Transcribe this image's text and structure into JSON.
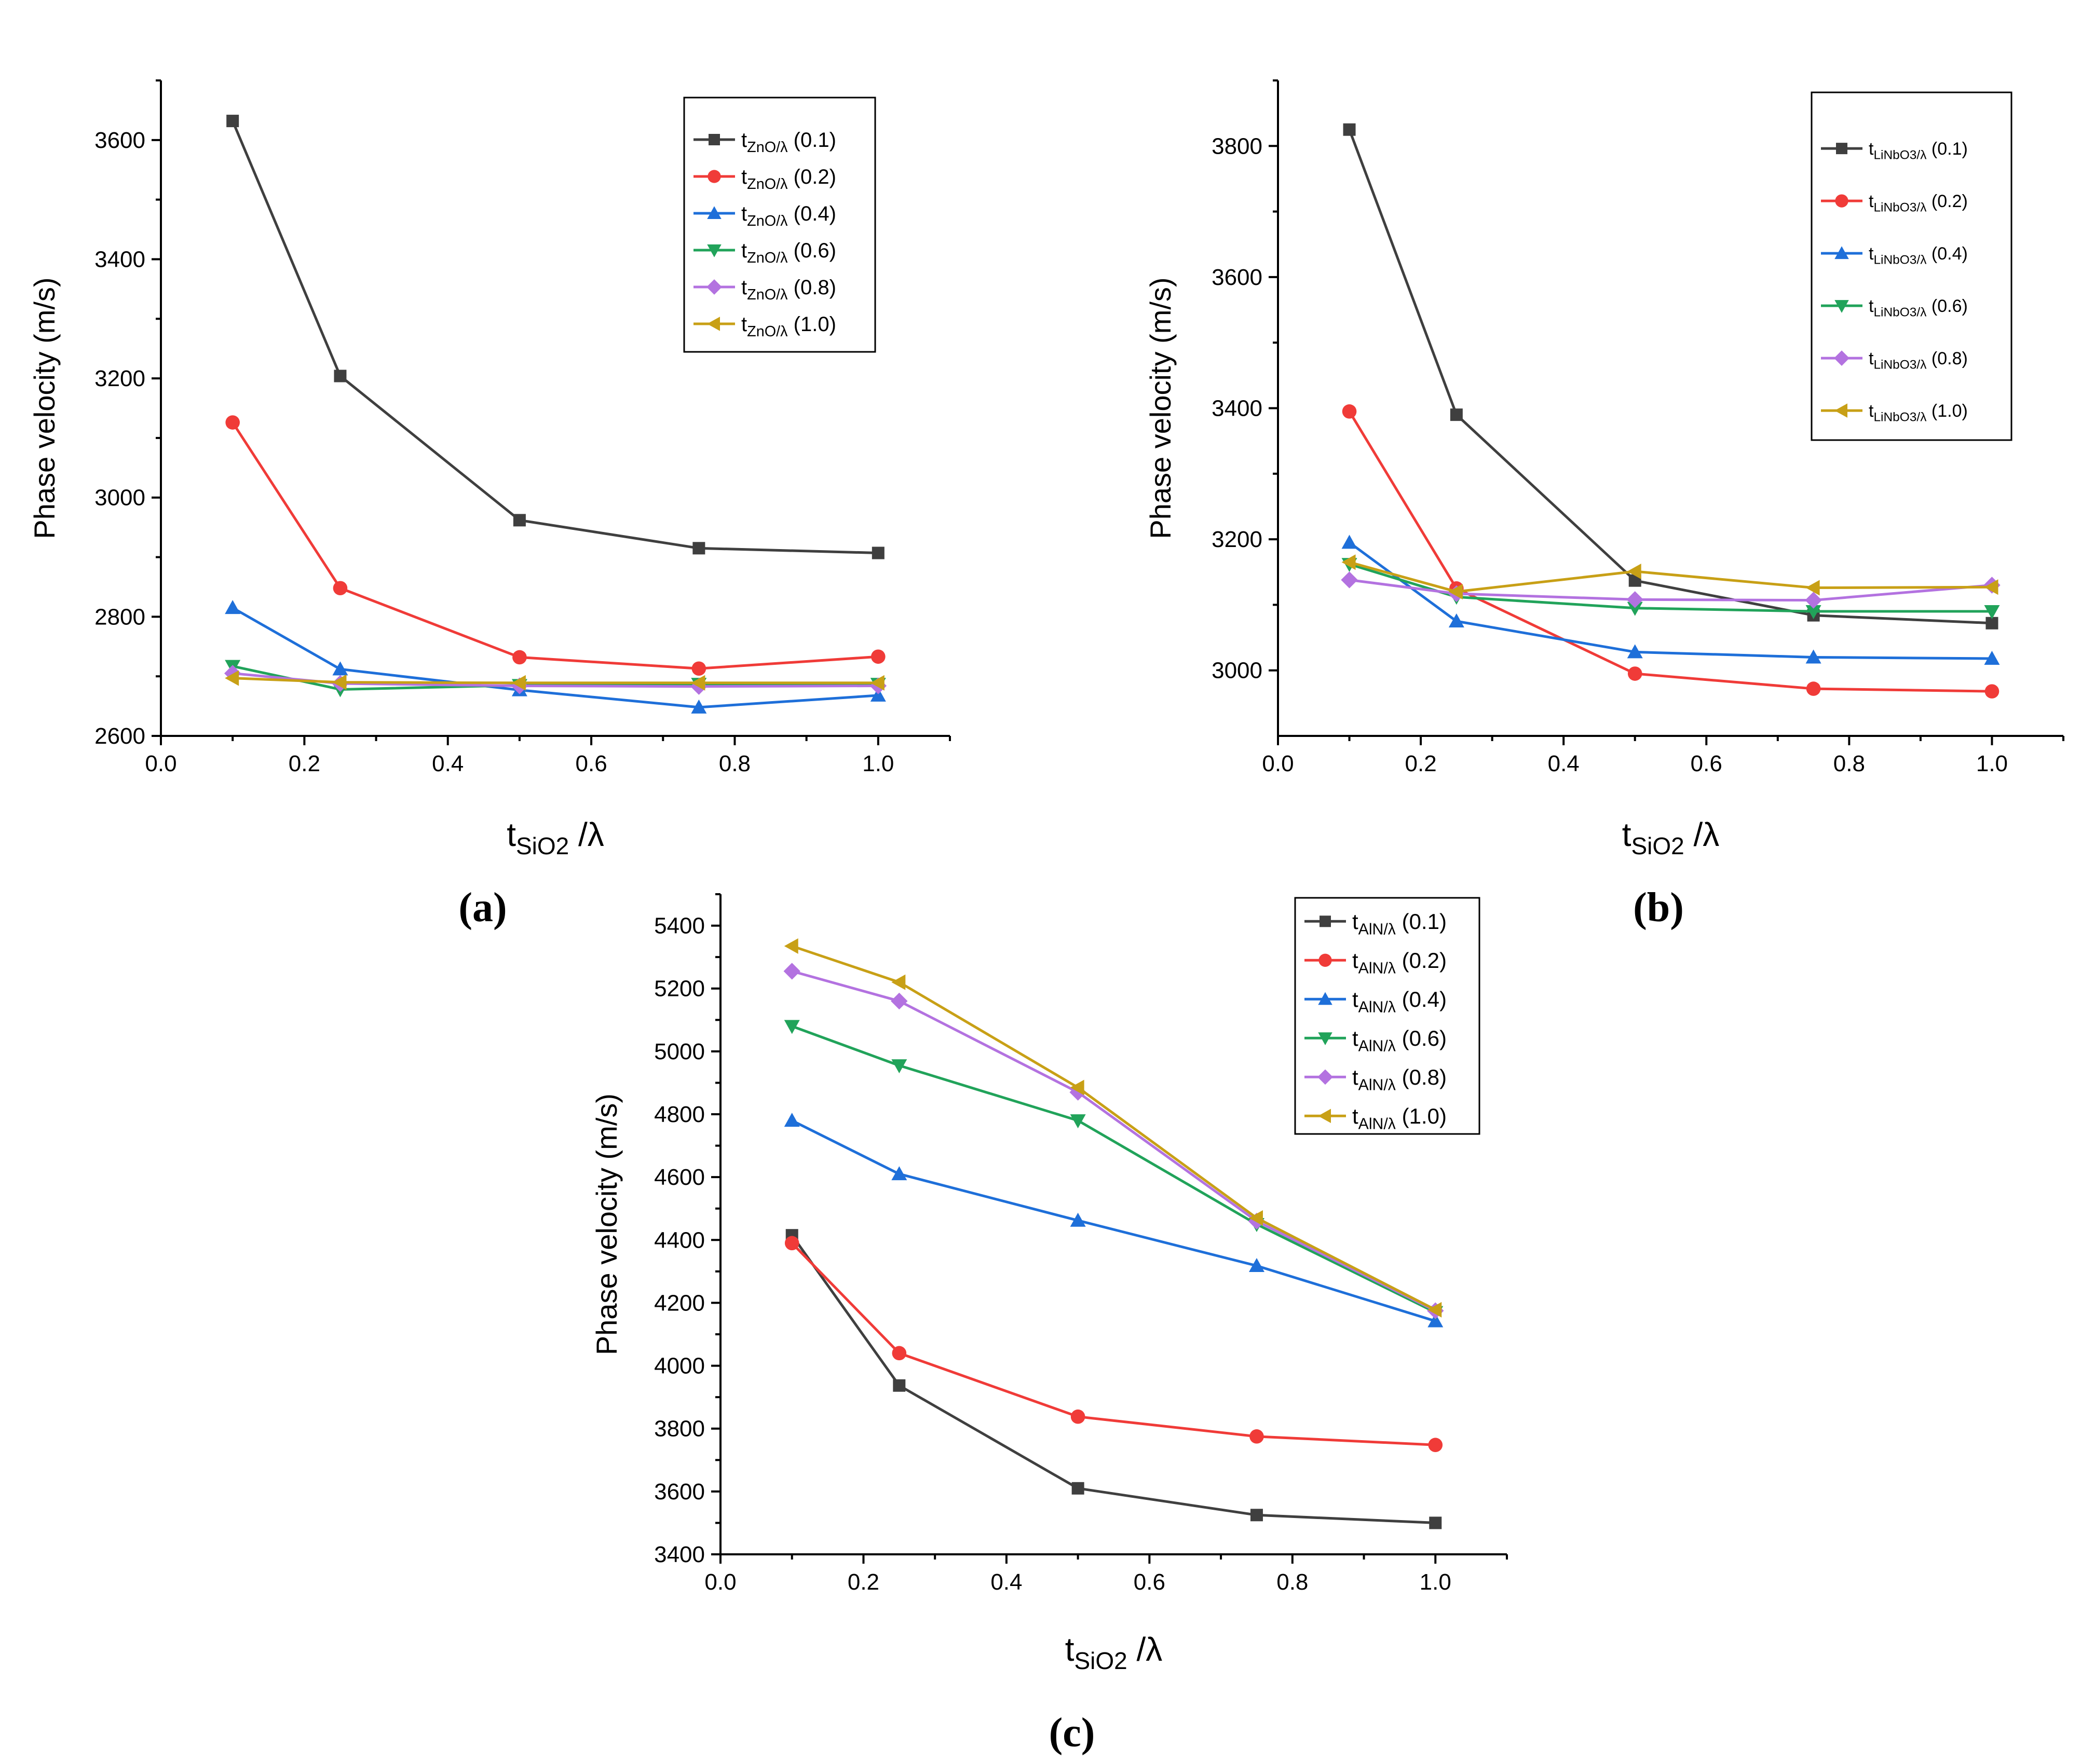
{
  "figure": {
    "panel_labels": [
      "(a)",
      "(b)",
      "(c)"
    ]
  },
  "chart_data": [
    {
      "panel": "(a)",
      "type": "line",
      "ylabel": "Phase velocity (m/s)",
      "xlabel_main": "t",
      "xlabel_sub": "SiO2",
      "xlabel_suffix": " /λ",
      "xlim": [
        0.0,
        1.1
      ],
      "ylim": [
        2600,
        3700
      ],
      "xticks": [
        0.0,
        0.2,
        0.4,
        0.6,
        0.8,
        1.0
      ],
      "xtick_labels": [
        "0.0",
        "0.2",
        "0.4",
        "0.6",
        "0.8",
        "1.0"
      ],
      "yticks": [
        2600,
        2800,
        3000,
        3200,
        3400,
        3600
      ],
      "ytick_labels": [
        "2600",
        "2800",
        "3000",
        "3200",
        "3400",
        "3600"
      ],
      "legend_position": "top-right",
      "x": [
        0.1,
        0.25,
        0.5,
        0.75,
        1.0
      ],
      "series": [
        {
          "name_main": "t",
          "name_sub": "ZnO/λ",
          "name_suffix": " (0.1)",
          "color": "#3f3f3f",
          "marker": "square",
          "values": [
            3632,
            3204,
            2962,
            2915,
            2907
          ]
        },
        {
          "name_main": "t",
          "name_sub": "ZnO/λ",
          "name_suffix": " (0.2)",
          "color": "#f03b38",
          "marker": "circle",
          "values": [
            3126,
            2848,
            2732,
            2713,
            2733
          ]
        },
        {
          "name_main": "t",
          "name_sub": "ZnO/λ",
          "name_suffix": " (0.4)",
          "color": "#1e6fd9",
          "marker": "triangle-up",
          "values": [
            2815,
            2712,
            2677,
            2648,
            2668
          ]
        },
        {
          "name_main": "t",
          "name_sub": "ZnO/λ",
          "name_suffix": " (0.6)",
          "color": "#21a35a",
          "marker": "triangle-down",
          "values": [
            2717,
            2678,
            2685,
            2687,
            2687
          ]
        },
        {
          "name_main": "t",
          "name_sub": "ZnO/λ",
          "name_suffix": " (0.8)",
          "color": "#b372e0",
          "marker": "diamond",
          "values": [
            2705,
            2688,
            2684,
            2683,
            2684
          ]
        },
        {
          "name_main": "t",
          "name_sub": "ZnO/λ",
          "name_suffix": " (1.0)",
          "color": "#c8a016",
          "marker": "triangle-left",
          "values": [
            2697,
            2690,
            2689,
            2689,
            2689
          ]
        }
      ]
    },
    {
      "panel": "(b)",
      "type": "line",
      "ylabel": "Phase velocity (m/s)",
      "xlabel_main": "t",
      "xlabel_sub": "SiO2",
      "xlabel_suffix": " /λ",
      "xlim": [
        0.0,
        1.1
      ],
      "ylim": [
        2900,
        3900
      ],
      "xticks": [
        0.0,
        0.2,
        0.4,
        0.6,
        0.8,
        1.0
      ],
      "xtick_labels": [
        "0.0",
        "0.2",
        "0.4",
        "0.6",
        "0.8",
        "1.0"
      ],
      "yticks": [
        3000,
        3200,
        3400,
        3600,
        3800
      ],
      "ytick_labels": [
        "3000",
        "3200",
        "3400",
        "3600",
        "3800"
      ],
      "legend_position": "top-right",
      "x": [
        0.1,
        0.25,
        0.5,
        0.75,
        1.0
      ],
      "series": [
        {
          "name_main": "t",
          "name_sub": "LiNbO3/λ",
          "name_suffix": " (0.1)",
          "color": "#3f3f3f",
          "marker": "square",
          "values": [
            3825,
            3390,
            3137,
            3084,
            3072
          ]
        },
        {
          "name_main": "t",
          "name_sub": "LiNbO3/λ",
          "name_suffix": " (0.2)",
          "color": "#f03b38",
          "marker": "circle",
          "values": [
            3395,
            3125,
            2995,
            2972,
            2968
          ]
        },
        {
          "name_main": "t",
          "name_sub": "LiNbO3/λ",
          "name_suffix": " (0.4)",
          "color": "#1e6fd9",
          "marker": "triangle-up",
          "values": [
            3195,
            3075,
            3028,
            3020,
            3018
          ]
        },
        {
          "name_main": "t",
          "name_sub": "LiNbO3/λ",
          "name_suffix": " (0.6)",
          "color": "#21a35a",
          "marker": "triangle-down",
          "values": [
            3162,
            3112,
            3095,
            3090,
            3090
          ]
        },
        {
          "name_main": "t",
          "name_sub": "LiNbO3/λ",
          "name_suffix": " (0.8)",
          "color": "#b372e0",
          "marker": "diamond",
          "values": [
            3138,
            3117,
            3108,
            3107,
            3130
          ]
        },
        {
          "name_main": "t",
          "name_sub": "LiNbO3/λ",
          "name_suffix": " (1.0)",
          "color": "#c8a016",
          "marker": "triangle-left",
          "values": [
            3165,
            3120,
            3151,
            3126,
            3127
          ]
        }
      ]
    },
    {
      "panel": "(c)",
      "type": "line",
      "ylabel": "Phase velocity (m/s)",
      "xlabel_main": "t",
      "xlabel_sub": "SiO2",
      "xlabel_suffix": " /λ",
      "xlim": [
        0.0,
        1.1
      ],
      "ylim": [
        3400,
        5500
      ],
      "xticks": [
        0.0,
        0.2,
        0.4,
        0.6,
        0.8,
        1.0
      ],
      "xtick_labels": [
        "0.0",
        "0.2",
        "0.4",
        "0.6",
        "0.8",
        "1.0"
      ],
      "yticks": [
        3400,
        3600,
        3800,
        4000,
        4200,
        4400,
        4600,
        4800,
        5000,
        5200,
        5400
      ],
      "ytick_labels": [
        "3400",
        "3600",
        "3800",
        "4000",
        "4200",
        "4400",
        "4600",
        "4800",
        "5000",
        "5200",
        "5400"
      ],
      "legend_position": "top-right",
      "x": [
        0.1,
        0.25,
        0.5,
        0.75,
        1.0
      ],
      "series": [
        {
          "name_main": "t",
          "name_sub": "AlN/λ",
          "name_suffix": " (0.1)",
          "color": "#3f3f3f",
          "marker": "square",
          "values": [
            4415,
            3937,
            3610,
            3525,
            3500
          ]
        },
        {
          "name_main": "t",
          "name_sub": "AlN/λ",
          "name_suffix": " (0.2)",
          "color": "#f03b38",
          "marker": "circle",
          "values": [
            4390,
            4040,
            3838,
            3775,
            3748
          ]
        },
        {
          "name_main": "t",
          "name_sub": "AlN/λ",
          "name_suffix": " (0.4)",
          "color": "#1e6fd9",
          "marker": "triangle-up",
          "values": [
            4780,
            4610,
            4462,
            4318,
            4142
          ]
        },
        {
          "name_main": "t",
          "name_sub": "AlN/λ",
          "name_suffix": " (0.6)",
          "color": "#21a35a",
          "marker": "triangle-down",
          "values": [
            5080,
            4955,
            4780,
            4450,
            4170
          ]
        },
        {
          "name_main": "t",
          "name_sub": "AlN/λ",
          "name_suffix": " (0.8)",
          "color": "#b372e0",
          "marker": "diamond",
          "values": [
            5255,
            5160,
            4870,
            4460,
            4175
          ]
        },
        {
          "name_main": "t",
          "name_sub": "AlN/λ",
          "name_suffix": " (1.0)",
          "color": "#c8a016",
          "marker": "triangle-left",
          "values": [
            5335,
            5220,
            4885,
            4470,
            4178
          ]
        }
      ]
    }
  ]
}
